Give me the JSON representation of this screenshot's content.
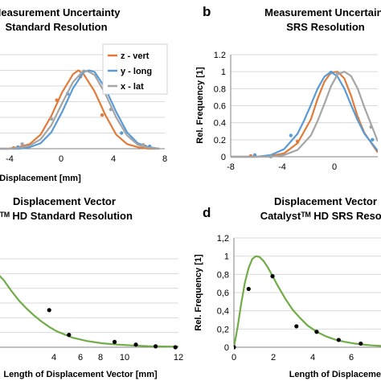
{
  "chart_data": [
    {
      "panel_letter": "",
      "type": "line",
      "title_lines": [
        "Measurement Uncertainty",
        "Standard Resolution"
      ],
      "xlabel": "Displacement [mm]",
      "ylabel": "",
      "xlim": [
        -8,
        8
      ],
      "ylim": [
        0,
        1.2
      ],
      "x_ticks": [
        "-4",
        "0",
        "4",
        "8"
      ],
      "y_ticks": [],
      "legend_position": "top-right",
      "series": [
        {
          "name": "z - vert",
          "color": "#e07b39",
          "x": [
            -7.5,
            -6.5,
            -5.5,
            -4.5,
            -3.5,
            -2.5,
            -1.5,
            -0.5,
            0,
            0.5,
            1.5,
            2.5,
            3.5,
            4.5,
            5.5,
            6.5,
            7.5
          ],
          "y": [
            0.0,
            0.0,
            0.02,
            0.06,
            0.18,
            0.42,
            0.72,
            0.95,
            1.0,
            0.95,
            0.73,
            0.43,
            0.18,
            0.06,
            0.02,
            0.0,
            0.0
          ],
          "points_x": [
            -6.0,
            -2.0,
            0.2,
            2.2,
            6.2
          ],
          "points_y": [
            0.01,
            0.62,
            0.92,
            0.43,
            0.03
          ]
        },
        {
          "name": "y - long",
          "color": "#5b9bd5",
          "x": [
            -7.5,
            -6.5,
            -5.5,
            -4.5,
            -3.5,
            -2.5,
            -1.5,
            -0.5,
            0.5,
            1,
            1.5,
            2.5,
            3.5,
            4.5,
            5.5,
            6.5,
            7.5
          ],
          "y": [
            0.0,
            0.0,
            0.0,
            0.02,
            0.07,
            0.21,
            0.47,
            0.77,
            0.98,
            1.0,
            0.98,
            0.77,
            0.47,
            0.21,
            0.07,
            0.02,
            0.0
          ],
          "points_x": [
            -5.6,
            -1.0,
            4.0,
            6.6
          ],
          "points_y": [
            0.02,
            0.7,
            0.2,
            0.03
          ]
        },
        {
          "name": "x - lat",
          "color": "#a5a5a5",
          "x": [
            -7.5,
            -6.5,
            -5.5,
            -4.5,
            -3.5,
            -2.5,
            -1.5,
            -0.5,
            0.5,
            1,
            1.5,
            2.5,
            3.5,
            4.5,
            5.5,
            6.5,
            7.5
          ],
          "y": [
            0.0,
            0.0,
            0.01,
            0.04,
            0.12,
            0.3,
            0.58,
            0.85,
            1.0,
            0.98,
            0.94,
            0.7,
            0.4,
            0.17,
            0.05,
            0.01,
            0.0
          ],
          "points_x": [
            -5.2,
            -2.5,
            3.0,
            6.0
          ],
          "points_y": [
            0.06,
            0.38,
            0.5,
            0.05
          ]
        }
      ]
    },
    {
      "panel_letter": "b",
      "type": "line",
      "title_lines": [
        "Measurement Uncertaint",
        "SRS Resolution"
      ],
      "xlabel": "",
      "ylabel": "Rel. Frequency [1]",
      "xlim": [
        -8,
        3
      ],
      "ylim": [
        0,
        1.2
      ],
      "x_ticks": [
        "-8",
        "-4",
        "0"
      ],
      "y_ticks": [
        "0",
        "0.2",
        "0.4",
        "0.6",
        "0.8",
        "1",
        "1.2"
      ],
      "series": [
        {
          "name": "z - vert",
          "color": "#e07b39",
          "x": [
            -8,
            -6,
            -5,
            -4,
            -3,
            -2,
            -1.5,
            -1,
            -0.5,
            0,
            0.5,
            1,
            1.5,
            2,
            3
          ],
          "y": [
            0,
            0,
            0.01,
            0.04,
            0.16,
            0.44,
            0.68,
            0.88,
            0.99,
            1.0,
            0.92,
            0.72,
            0.47,
            0.28,
            0.05
          ],
          "points_x": [
            -6.5,
            -3.0,
            1.5
          ],
          "points_y": [
            0.01,
            0.18,
            0.45
          ]
        },
        {
          "name": "y - long",
          "color": "#5b9bd5",
          "x": [
            -8,
            -6,
            -5,
            -4,
            -3,
            -2.5,
            -2,
            -1.5,
            -1,
            -0.5,
            0,
            0.5,
            1,
            1.5,
            2,
            3
          ],
          "y": [
            0,
            0,
            0.02,
            0.09,
            0.27,
            0.43,
            0.61,
            0.8,
            0.94,
            1.0,
            0.94,
            0.8,
            0.61,
            0.43,
            0.27,
            0.07
          ],
          "points_x": [
            -6.2,
            -3.5,
            -0.5,
            2.6
          ],
          "points_y": [
            0.02,
            0.25,
            0.99,
            0.2
          ]
        },
        {
          "name": "x - lat",
          "color": "#a5a5a5",
          "x": [
            -8,
            -6,
            -5,
            -4,
            -3,
            -2,
            -1.5,
            -1,
            -0.5,
            0,
            0.5,
            1,
            1.5,
            2,
            3
          ],
          "y": [
            0,
            0,
            0.0,
            0.02,
            0.08,
            0.25,
            0.42,
            0.62,
            0.83,
            0.97,
            1.0,
            0.95,
            0.8,
            0.58,
            0.18
          ],
          "points_x": [
            -5.0,
            0.0,
            2.5
          ],
          "points_y": [
            0.0,
            0.98,
            0.35
          ]
        }
      ]
    },
    {
      "panel_letter": "",
      "type": "line",
      "title_lines": [
        "Displacement Vector",
        "tᵀᴹ HD Standard Resolution"
      ],
      "xlabel": "Length of Displacement Vector [mm]",
      "ylabel": "",
      "xlim": [
        0,
        12
      ],
      "ylim": [
        0,
        1.0
      ],
      "x_ticks": [
        "4",
        "6",
        "8",
        "10",
        "12"
      ],
      "y_ticks": [],
      "series": [
        {
          "name": "",
          "color": "#70ad47",
          "x": [
            0,
            0.5,
            1,
            1.5,
            2,
            2.5,
            3,
            3.5,
            4,
            5,
            6,
            7,
            8,
            9,
            10,
            11,
            12
          ],
          "y": [
            0.85,
            0.76,
            0.64,
            0.53,
            0.44,
            0.36,
            0.29,
            0.23,
            0.18,
            0.11,
            0.07,
            0.045,
            0.03,
            0.02,
            0.012,
            0.008,
            0.005
          ],
          "points_x": [
            3.5,
            4.8,
            7.8,
            9.2,
            10.5,
            11.8
          ],
          "points_y": [
            0.42,
            0.14,
            0.06,
            0.03,
            0.01,
            0.0
          ]
        }
      ]
    },
    {
      "panel_letter": "d",
      "type": "line",
      "title_lines": [
        "Displacement Vector",
        "Catalystᵀᴹ HD SRS Resolu"
      ],
      "xlabel": "Length of Displacement Ve",
      "ylabel": "Rel. Frequency [1]",
      "xlim": [
        0,
        8
      ],
      "ylim": [
        0,
        1.2
      ],
      "x_ticks": [
        "0",
        "2",
        "4",
        "6"
      ],
      "y_ticks": [
        "0",
        "0,2",
        "0,4",
        "0,6",
        "0,8",
        "1",
        "1,2"
      ],
      "series": [
        {
          "name": "",
          "color": "#70ad47",
          "x": [
            0,
            0.2,
            0.4,
            0.6,
            0.8,
            1.0,
            1.2,
            1.4,
            1.6,
            1.8,
            2.0,
            2.4,
            2.8,
            3.2,
            3.6,
            4.0,
            4.5,
            5,
            5.5,
            6,
            6.5,
            7,
            7.5,
            8
          ],
          "y": [
            0,
            0.22,
            0.48,
            0.71,
            0.87,
            0.97,
            1.0,
            0.99,
            0.95,
            0.89,
            0.82,
            0.67,
            0.53,
            0.41,
            0.32,
            0.24,
            0.17,
            0.12,
            0.085,
            0.06,
            0.042,
            0.03,
            0.02,
            0.014
          ],
          "points_x": [
            0.0,
            0.8,
            2.1,
            3.4,
            4.5,
            5.7,
            6.9
          ],
          "points_y": [
            0.0,
            0.64,
            0.78,
            0.23,
            0.17,
            0.08,
            0.04
          ]
        }
      ]
    }
  ]
}
